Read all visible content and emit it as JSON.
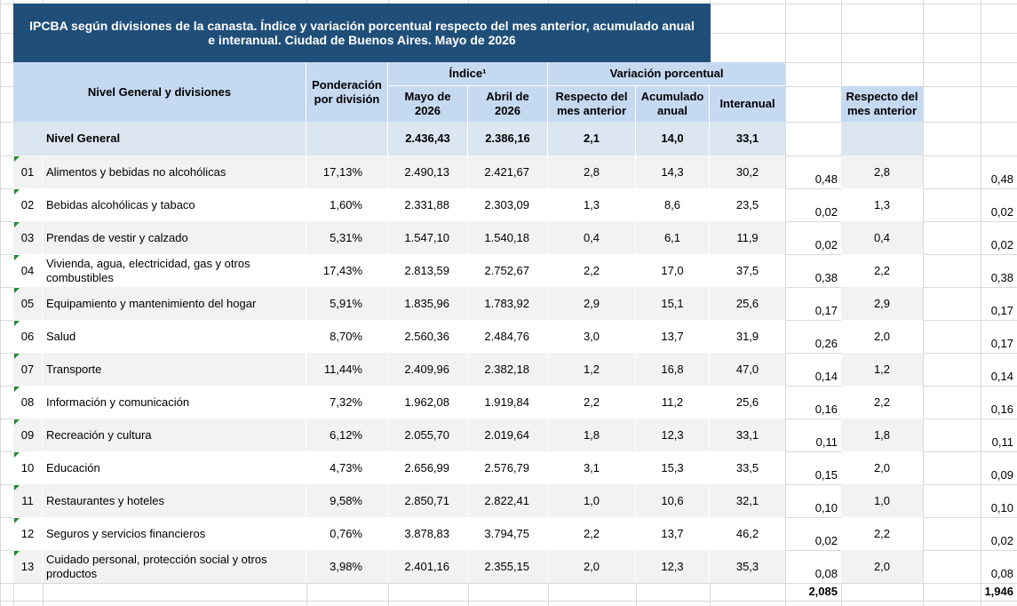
{
  "title": "IPCBA según divisiones de la canasta. Índice y variación porcentual respecto del mes anterior, acumulado anual e interanual. Ciudad de Buenos Aires. Mayo de 2026",
  "headers": {
    "nivel": "Nivel General y divisiones",
    "ponderacion": "Ponderación por división",
    "indice": "Índice¹",
    "mayo": "Mayo de 2026",
    "abril": "Abril de 2026",
    "variacion": "Variación porcentual",
    "respecto": "Respecto del mes anterior",
    "acumulado": "Acumulado anual",
    "interanual": "Interanual",
    "respecto2": "Respecto del mes anterior"
  },
  "general": {
    "label": "Nivel General",
    "mayo": "2.436,43",
    "abril": "2.386,16",
    "respecto": "2,1",
    "acumulado": "14,0",
    "interanual": "33,1"
  },
  "rows": [
    [
      "01",
      "Alimentos y bebidas no alcohólicas",
      "17,13%",
      "2.490,13",
      "2.421,67",
      "2,8",
      "14,3",
      "30,2",
      "0,48",
      "2,8",
      "0,48"
    ],
    [
      "02",
      "Bebidas alcohólicas y tabaco",
      "1,60%",
      "2.331,88",
      "2.303,09",
      "1,3",
      "8,6",
      "23,5",
      "0,02",
      "1,3",
      "0,02"
    ],
    [
      "03",
      "Prendas de vestir y calzado",
      "5,31%",
      "1.547,10",
      "1.540,18",
      "0,4",
      "6,1",
      "11,9",
      "0,02",
      "0,4",
      "0,02"
    ],
    [
      "04",
      "Vivienda, agua, electricidad, gas y otros combustibles",
      "17,43%",
      "2.813,59",
      "2.752,67",
      "2,2",
      "17,0",
      "37,5",
      "0,38",
      "2,2",
      "0,38"
    ],
    [
      "05",
      "Equipamiento y mantenimiento del hogar",
      "5,91%",
      "1.835,96",
      "1.783,92",
      "2,9",
      "15,1",
      "25,6",
      "0,17",
      "2,9",
      "0,17"
    ],
    [
      "06",
      "Salud",
      "8,70%",
      "2.560,36",
      "2.484,76",
      "3,0",
      "13,7",
      "31,9",
      "0,26",
      "2,0",
      "0,17"
    ],
    [
      "07",
      "Transporte",
      "11,44%",
      "2.409,96",
      "2.382,18",
      "1,2",
      "16,8",
      "47,0",
      "0,14",
      "1,2",
      "0,14"
    ],
    [
      "08",
      "Información y comunicación",
      "7,32%",
      "1.962,08",
      "1.919,84",
      "2,2",
      "11,2",
      "25,6",
      "0,16",
      "2,2",
      "0,16"
    ],
    [
      "09",
      "Recreación y cultura",
      "6,12%",
      "2.055,70",
      "2.019,64",
      "1,8",
      "12,3",
      "33,1",
      "0,11",
      "1,8",
      "0,11"
    ],
    [
      "10",
      "Educación",
      "4,73%",
      "2.656,99",
      "2.576,79",
      "3,1",
      "15,3",
      "33,5",
      "0,15",
      "2,0",
      "0,09"
    ],
    [
      "11",
      "Restaurantes y hoteles",
      "9,58%",
      "2.850,71",
      "2.822,41",
      "1,0",
      "10,6",
      "32,1",
      "0,10",
      "1,0",
      "0,10"
    ],
    [
      "12",
      "Seguros y servicios financieros",
      "0,76%",
      "3.878,83",
      "3.794,75",
      "2,2",
      "13,7",
      "46,2",
      "0,02",
      "2,2",
      "0,02"
    ],
    [
      "13",
      "Cuidado personal, protección social y otros productos",
      "3,98%",
      "2.401,16",
      "2.355,15",
      "2,0",
      "12,3",
      "35,3",
      "0,08",
      "2,0",
      "0,08"
    ]
  ],
  "totals": [
    "2,085",
    "1,946"
  ]
}
